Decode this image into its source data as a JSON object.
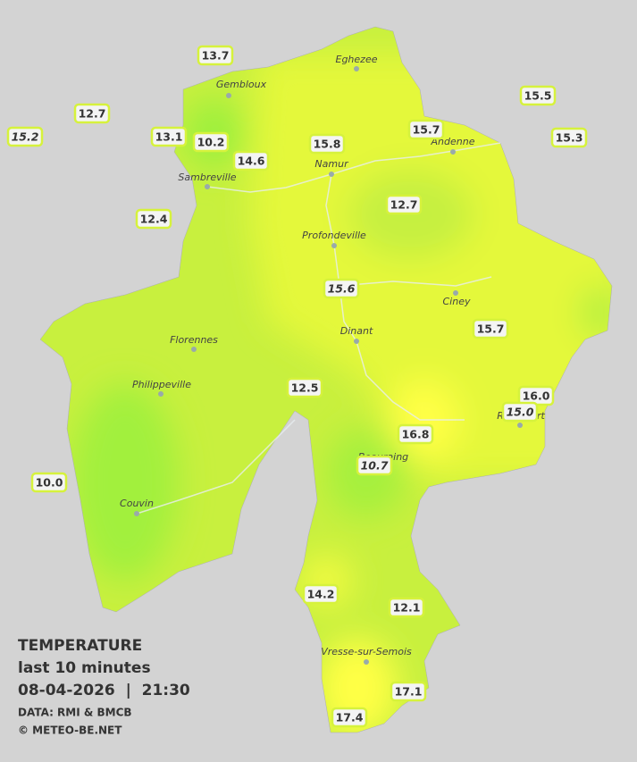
{
  "legend": {
    "title": "TEMPERATURE",
    "subtitle": "last 10 minutes",
    "datetime": "08-04-2026  |  21:30",
    "source": "DATA: RMI & BMCB",
    "copyright": "© METEO-BE.NET"
  },
  "cities": [
    "Eghezee",
    "Gembloux",
    "Andenne",
    "Namur",
    "Sambreville",
    "Profondeville",
    "Ciney",
    "Dinant",
    "Florennes",
    "Philippeville",
    "Rochefort",
    "Beauraing",
    "Couvin",
    "Vresse-sur-Semois"
  ],
  "stations": [
    {
      "label": "13.7"
    },
    {
      "label": "12.7"
    },
    {
      "label": "15.2",
      "italic": true
    },
    {
      "label": "13.1"
    },
    {
      "label": "10.2"
    },
    {
      "label": "14.6"
    },
    {
      "label": "15.8"
    },
    {
      "label": "15.7"
    },
    {
      "label": "15.5"
    },
    {
      "label": "15.3"
    },
    {
      "label": "12.4"
    },
    {
      "label": "12.7"
    },
    {
      "label": "15.6",
      "italic": true
    },
    {
      "label": "15.7"
    },
    {
      "label": "12.5"
    },
    {
      "label": "16.0"
    },
    {
      "label": "15.0",
      "italic": true
    },
    {
      "label": "16.8"
    },
    {
      "label": "10.7",
      "italic": true
    },
    {
      "label": "10.0"
    },
    {
      "label": "14.2"
    },
    {
      "label": "12.1"
    },
    {
      "label": "17.1"
    },
    {
      "label": "17.4"
    }
  ]
}
